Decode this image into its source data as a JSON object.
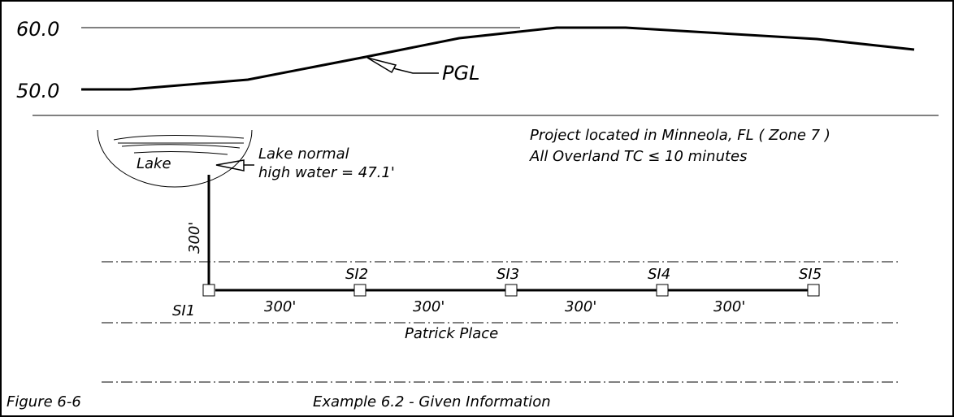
{
  "profile": {
    "elevations": [
      "60.0",
      "50.0"
    ],
    "label": "PGL"
  },
  "notes": [
    "Project located in Minneola, FL ( Zone 7 )",
    "All Overland TC ≤ 10 minutes"
  ],
  "lake": {
    "name": "Lake",
    "callout": [
      "Lake normal",
      "high water = 47.1'"
    ],
    "pipe_length": "300'"
  },
  "inlets": [
    "SI1",
    "SI2",
    "SI3",
    "SI4",
    "SI5"
  ],
  "segments": [
    "300'",
    "300'",
    "300'",
    "300'"
  ],
  "street": "Patrick Place",
  "footer": {
    "figure": "Figure 6-6",
    "caption": "Example 6.2 - Given Information"
  }
}
